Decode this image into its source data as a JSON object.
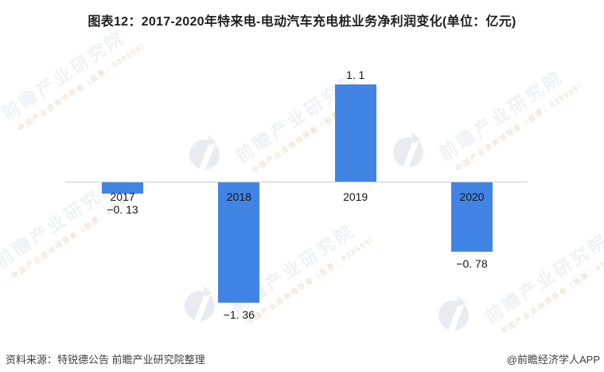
{
  "title": "图表12：2017-2020年特来电-电动汽车充电桩业务净利润变化(单位：亿元)",
  "chart_data": {
    "type": "bar",
    "title": "2017-2020年特来电-电动汽车充电桩业务净利润变化",
    "unit": "亿元",
    "categories": [
      "2017",
      "2018",
      "2019",
      "2020"
    ],
    "values": [
      -0.13,
      -1.36,
      1.1,
      -0.78
    ],
    "value_labels": [
      "−0. 13",
      "−1. 36",
      "1. 1",
      "−0. 78"
    ],
    "xlabel": "",
    "ylabel": "",
    "ylim": [
      -1.6,
      1.3
    ],
    "baseline": 0,
    "grid": false,
    "legend": "none",
    "bar_color": "#4184E4",
    "axis_color": "#cbcbcb",
    "label_color": "#151515"
  },
  "footer": {
    "source": "资料来源：特锐德公告 前瞻产业研究院整理",
    "credit": "@前瞻经济学人APP"
  },
  "watermark": {
    "icon": "qianzhan-logo-icon",
    "text": "前瞻产业研究院",
    "subtext": "中国产业咨询领导者（股票：839599）"
  }
}
